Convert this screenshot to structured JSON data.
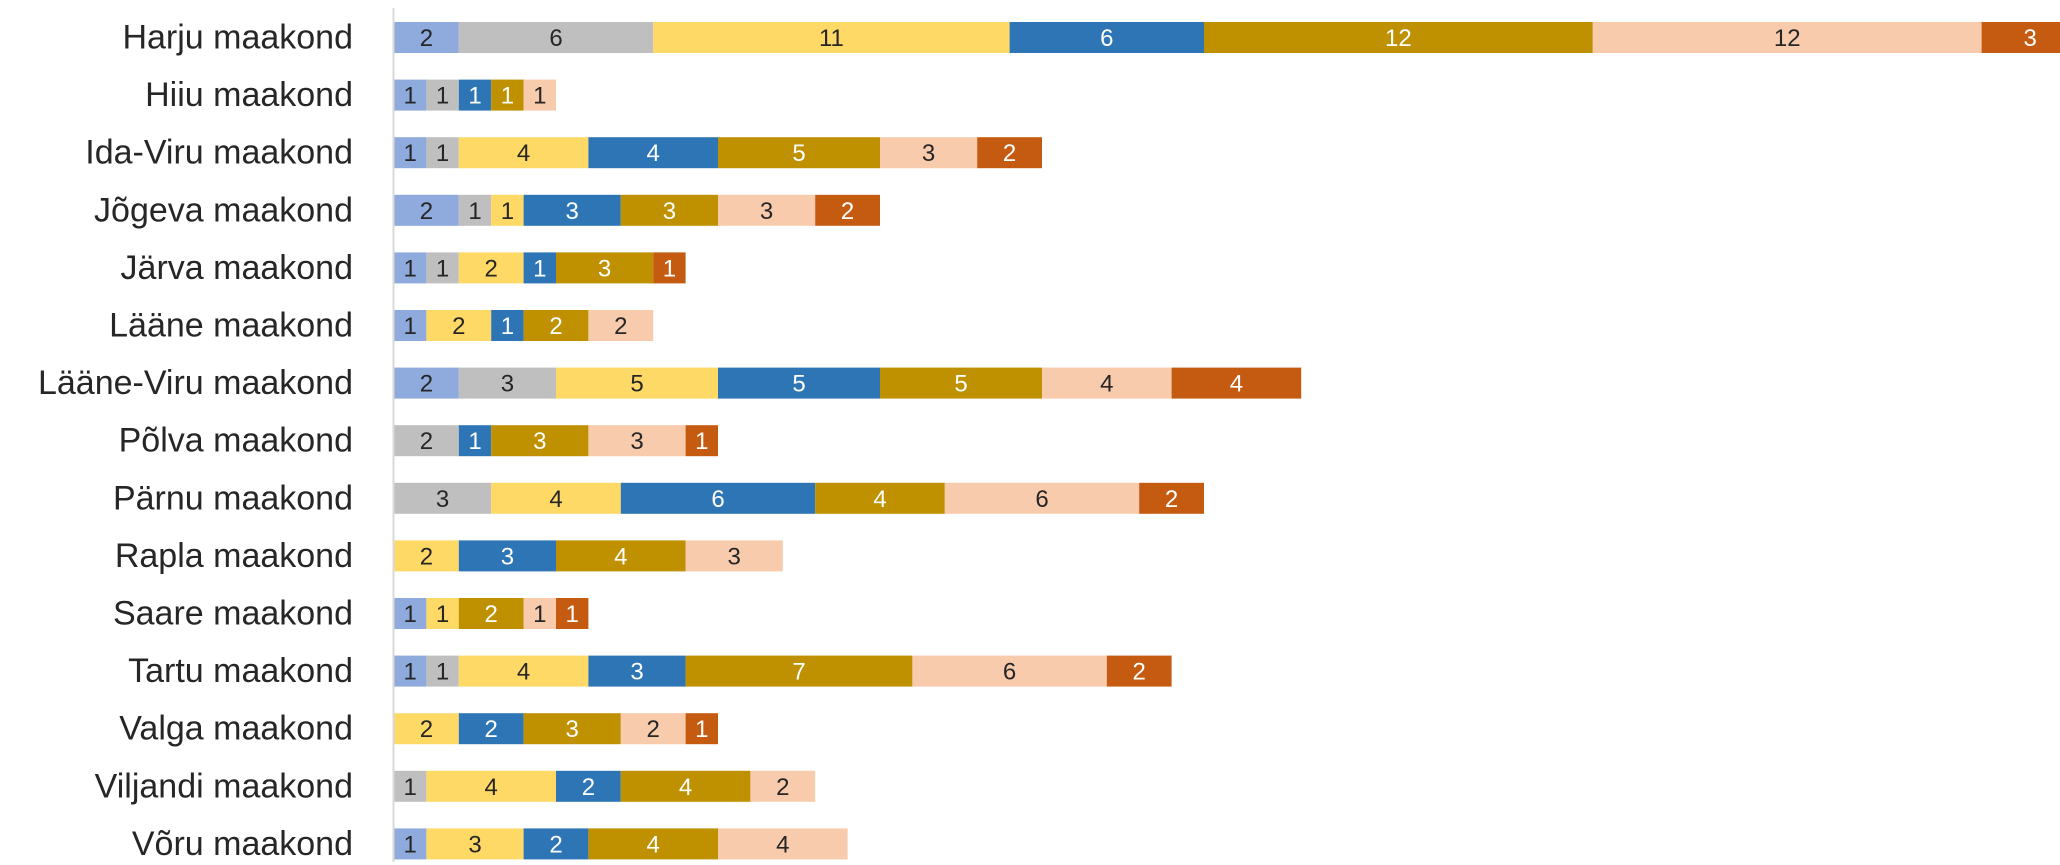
{
  "chart_data": {
    "type": "bar",
    "orientation": "horizontal",
    "stacked": true,
    "title": "",
    "xlabel": "",
    "ylabel": "",
    "grid": false,
    "legend": "none",
    "xlim": [
      0,
      64
    ],
    "categories": [
      "Harju maakond",
      "Hiiu maakond",
      "Ida-Viru maakond",
      "Jõgeva maakond",
      "Järva maakond",
      "Lääne maakond",
      "Lääne-Viru maakond",
      "Põlva maakond",
      "Pärnu maakond",
      "Rapla maakond",
      "Saare maakond",
      "Tartu maakond",
      "Valga maakond",
      "Viljandi maakond",
      "Võru maakond"
    ],
    "series": [
      {
        "color": "#8FAADC",
        "label_color": "#262626",
        "values": [
          2,
          1,
          1,
          2,
          1,
          1,
          2,
          0,
          0,
          0,
          1,
          1,
          0,
          0,
          1
        ]
      },
      {
        "color": "#BFBFBF",
        "label_color": "#262626",
        "values": [
          6,
          1,
          1,
          1,
          1,
          0,
          3,
          2,
          3,
          0,
          0,
          1,
          0,
          1,
          0
        ]
      },
      {
        "color": "#FFD966",
        "label_color": "#262626",
        "values": [
          11,
          0,
          4,
          1,
          2,
          2,
          5,
          0,
          4,
          2,
          1,
          4,
          2,
          4,
          3
        ]
      },
      {
        "color": "#2E75B6",
        "label_color": "#FFFFFF",
        "values": [
          6,
          1,
          4,
          3,
          1,
          1,
          5,
          1,
          6,
          3,
          0,
          3,
          2,
          2,
          2
        ]
      },
      {
        "color": "#BF9000",
        "label_color": "#FFFFFF",
        "values": [
          12,
          1,
          5,
          3,
          3,
          2,
          5,
          3,
          4,
          4,
          2,
          7,
          3,
          4,
          4
        ]
      },
      {
        "color": "#F8CBAD",
        "label_color": "#262626",
        "values": [
          12,
          1,
          3,
          3,
          0,
          2,
          4,
          3,
          6,
          3,
          1,
          6,
          2,
          2,
          4
        ]
      },
      {
        "color": "#C55A11",
        "label_color": "#FFFFFF",
        "values": [
          3,
          0,
          2,
          2,
          1,
          0,
          4,
          1,
          2,
          0,
          1,
          2,
          1,
          0,
          0
        ]
      }
    ]
  }
}
